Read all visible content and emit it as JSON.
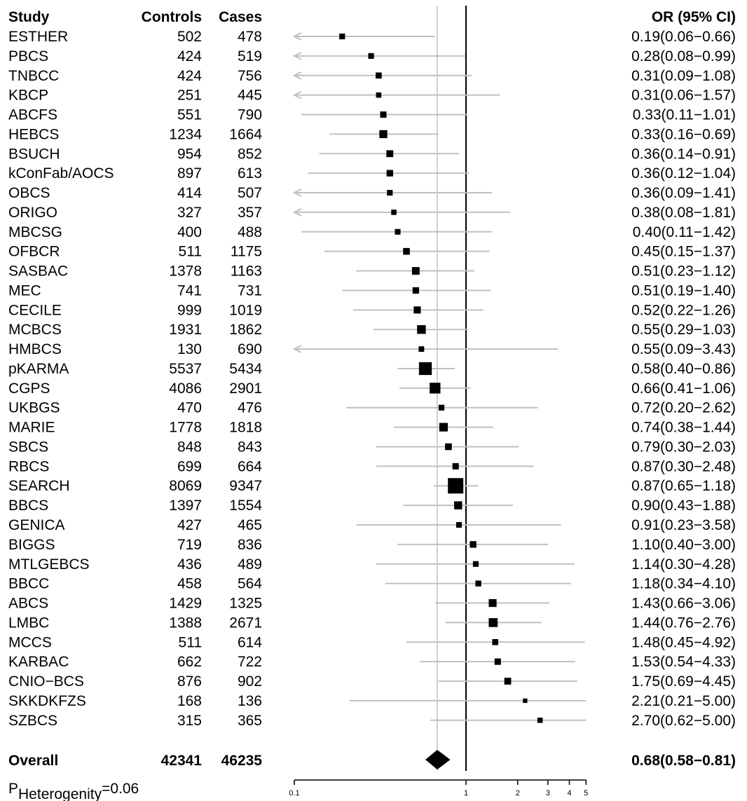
{
  "chart_data": {
    "type": "forest",
    "columns": {
      "study": "Study",
      "controls": "Controls",
      "cases": "Cases",
      "or": "OR (95% CI)"
    },
    "x_scale": "log",
    "x_ticks": [
      "0.1",
      "1",
      "2",
      "3",
      "4",
      "5"
    ],
    "xlim": [
      0.1,
      5
    ],
    "reference_line": 1,
    "overall_line": 0.68,
    "studies": [
      {
        "name": "ESTHER",
        "controls": "502",
        "cases": "478",
        "or": 0.19,
        "lo": 0.06,
        "hi": 0.66,
        "label": "0.19(0.06−0.66)"
      },
      {
        "name": "PBCS",
        "controls": "424",
        "cases": "519",
        "or": 0.28,
        "lo": 0.08,
        "hi": 0.99,
        "label": "0.28(0.08−0.99)"
      },
      {
        "name": "TNBCC",
        "controls": "424",
        "cases": "756",
        "or": 0.31,
        "lo": 0.09,
        "hi": 1.08,
        "label": "0.31(0.09−1.08)"
      },
      {
        "name": "KBCP",
        "controls": "251",
        "cases": "445",
        "or": 0.31,
        "lo": 0.06,
        "hi": 1.57,
        "label": "0.31(0.06−1.57)"
      },
      {
        "name": "ABCFS",
        "controls": "551",
        "cases": "790",
        "or": 0.33,
        "lo": 0.11,
        "hi": 1.01,
        "label": "0.33(0.11−1.01)"
      },
      {
        "name": "HEBCS",
        "controls": "1234",
        "cases": "1664",
        "or": 0.33,
        "lo": 0.16,
        "hi": 0.69,
        "label": "0.33(0.16−0.69)"
      },
      {
        "name": "BSUCH",
        "controls": "954",
        "cases": "852",
        "or": 0.36,
        "lo": 0.14,
        "hi": 0.91,
        "label": "0.36(0.14−0.91)"
      },
      {
        "name": "kConFab/AOCS",
        "controls": "897",
        "cases": "613",
        "or": 0.36,
        "lo": 0.12,
        "hi": 1.04,
        "label": "0.36(0.12−1.04)"
      },
      {
        "name": "OBCS",
        "controls": "414",
        "cases": "507",
        "or": 0.36,
        "lo": 0.09,
        "hi": 1.41,
        "label": "0.36(0.09−1.41)"
      },
      {
        "name": "ORIGO",
        "controls": "327",
        "cases": "357",
        "or": 0.38,
        "lo": 0.08,
        "hi": 1.81,
        "label": "0.38(0.08−1.81)"
      },
      {
        "name": "MBCSG",
        "controls": "400",
        "cases": "488",
        "or": 0.4,
        "lo": 0.11,
        "hi": 1.42,
        "label": "0.40(0.11−1.42)"
      },
      {
        "name": "OFBCR",
        "controls": "511",
        "cases": "1175",
        "or": 0.45,
        "lo": 0.15,
        "hi": 1.37,
        "label": "0.45(0.15−1.37)"
      },
      {
        "name": "SASBAC",
        "controls": "1378",
        "cases": "1163",
        "or": 0.51,
        "lo": 0.23,
        "hi": 1.12,
        "label": "0.51(0.23−1.12)"
      },
      {
        "name": "MEC",
        "controls": "741",
        "cases": "731",
        "or": 0.51,
        "lo": 0.19,
        "hi": 1.4,
        "label": "0.51(0.19−1.40)"
      },
      {
        "name": "CECILE",
        "controls": "999",
        "cases": "1019",
        "or": 0.52,
        "lo": 0.22,
        "hi": 1.26,
        "label": "0.52(0.22−1.26)"
      },
      {
        "name": "MCBCS",
        "controls": "1931",
        "cases": "1862",
        "or": 0.55,
        "lo": 0.29,
        "hi": 1.03,
        "label": "0.55(0.29−1.03)"
      },
      {
        "name": "HMBCS",
        "controls": "130",
        "cases": "690",
        "or": 0.55,
        "lo": 0.09,
        "hi": 3.43,
        "label": "0.55(0.09−3.43)"
      },
      {
        "name": "pKARMA",
        "controls": "5537",
        "cases": "5434",
        "or": 0.58,
        "lo": 0.4,
        "hi": 0.86,
        "label": "0.58(0.40−0.86)"
      },
      {
        "name": "CGPS",
        "controls": "4086",
        "cases": "2901",
        "or": 0.66,
        "lo": 0.41,
        "hi": 1.06,
        "label": "0.66(0.41−1.06)"
      },
      {
        "name": "UKBGS",
        "controls": "470",
        "cases": "476",
        "or": 0.72,
        "lo": 0.2,
        "hi": 2.62,
        "label": "0.72(0.20−2.62)"
      },
      {
        "name": "MARIE",
        "controls": "1778",
        "cases": "1818",
        "or": 0.74,
        "lo": 0.38,
        "hi": 1.44,
        "label": "0.74(0.38−1.44)"
      },
      {
        "name": "SBCS",
        "controls": "848",
        "cases": "843",
        "or": 0.79,
        "lo": 0.3,
        "hi": 2.03,
        "label": "0.79(0.30−2.03)"
      },
      {
        "name": "RBCS",
        "controls": "699",
        "cases": "664",
        "or": 0.87,
        "lo": 0.3,
        "hi": 2.48,
        "label": "0.87(0.30−2.48)"
      },
      {
        "name": "SEARCH",
        "controls": "8069",
        "cases": "9347",
        "or": 0.87,
        "lo": 0.65,
        "hi": 1.18,
        "label": "0.87(0.65−1.18)"
      },
      {
        "name": "BBCS",
        "controls": "1397",
        "cases": "1554",
        "or": 0.9,
        "lo": 0.43,
        "hi": 1.88,
        "label": "0.90(0.43−1.88)"
      },
      {
        "name": "GENICA",
        "controls": "427",
        "cases": "465",
        "or": 0.91,
        "lo": 0.23,
        "hi": 3.58,
        "label": "0.91(0.23−3.58)"
      },
      {
        "name": "BIGGS",
        "controls": "719",
        "cases": "836",
        "or": 1.1,
        "lo": 0.4,
        "hi": 3.0,
        "label": "1.10(0.40−3.00)"
      },
      {
        "name": "MTLGEBCS",
        "controls": "436",
        "cases": "489",
        "or": 1.14,
        "lo": 0.3,
        "hi": 4.28,
        "label": "1.14(0.30−4.28)"
      },
      {
        "name": "BBCC",
        "controls": "458",
        "cases": "564",
        "or": 1.18,
        "lo": 0.34,
        "hi": 4.1,
        "label": "1.18(0.34−4.10)"
      },
      {
        "name": "ABCS",
        "controls": "1429",
        "cases": "1325",
        "or": 1.43,
        "lo": 0.66,
        "hi": 3.06,
        "label": "1.43(0.66−3.06)"
      },
      {
        "name": "LMBC",
        "controls": "1388",
        "cases": "2671",
        "or": 1.44,
        "lo": 0.76,
        "hi": 2.76,
        "label": "1.44(0.76−2.76)"
      },
      {
        "name": "MCCS",
        "controls": "511",
        "cases": "614",
        "or": 1.48,
        "lo": 0.45,
        "hi": 4.92,
        "label": "1.48(0.45−4.92)"
      },
      {
        "name": "KARBAC",
        "controls": "662",
        "cases": "722",
        "or": 1.53,
        "lo": 0.54,
        "hi": 4.33,
        "label": "1.53(0.54−4.33)"
      },
      {
        "name": "CNIO−BCS",
        "controls": "876",
        "cases": "902",
        "or": 1.75,
        "lo": 0.69,
        "hi": 4.45,
        "label": "1.75(0.69−4.45)"
      },
      {
        "name": "SKKDKFZS",
        "controls": "168",
        "cases": "136",
        "or": 2.21,
        "lo": 0.21,
        "hi": 5.0,
        "label": "2.21(0.21−5.00)"
      },
      {
        "name": "SZBCS",
        "controls": "315",
        "cases": "365",
        "or": 2.7,
        "lo": 0.62,
        "hi": 5.0,
        "label": "2.70(0.62−5.00)"
      }
    ],
    "overall": {
      "name": "Overall",
      "controls": "42341",
      "cases": "46235",
      "or": 0.68,
      "lo": 0.58,
      "hi": 0.81,
      "label": "0.68(0.58−0.81)"
    },
    "footnote": {
      "p": "P",
      "sub": "Heterogenity",
      "value": "=0.06"
    },
    "colors": {
      "ci_line": "#c0c0c0",
      "ref_line": "#d0d0d0",
      "marker": "#000000"
    }
  }
}
